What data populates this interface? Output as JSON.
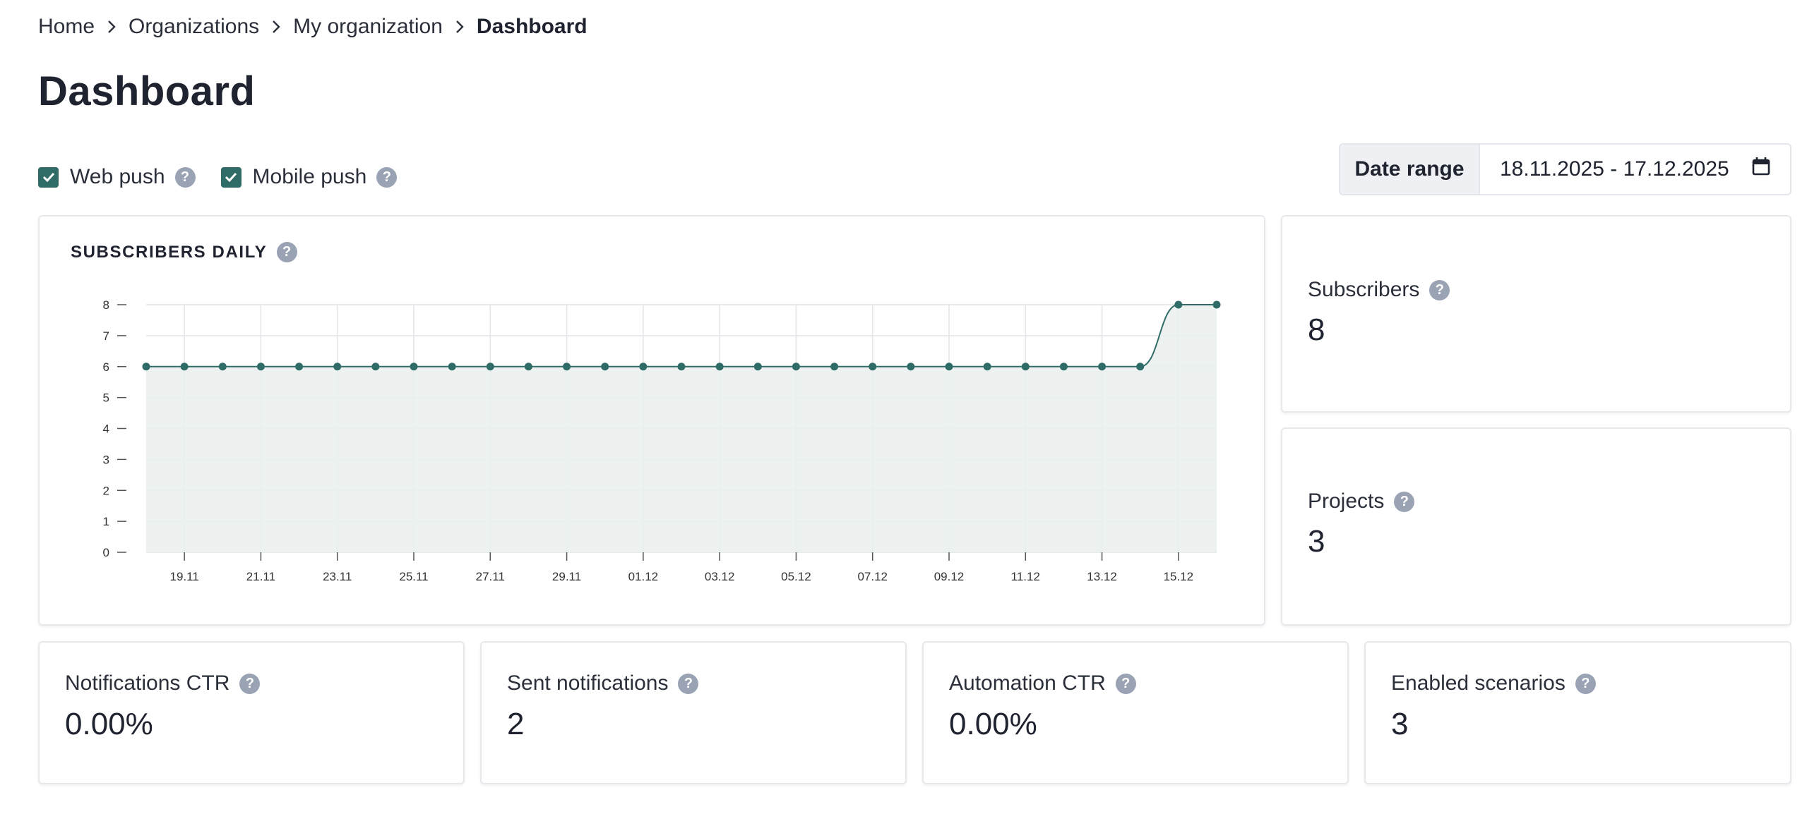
{
  "breadcrumb": {
    "items": [
      "Home",
      "Organizations",
      "My organization"
    ],
    "current": "Dashboard"
  },
  "page": {
    "title": "Dashboard"
  },
  "filters": {
    "web_push": {
      "label": "Web push",
      "checked": true
    },
    "mobile_push": {
      "label": "Mobile push",
      "checked": true
    }
  },
  "date_range": {
    "label": "Date range",
    "value": "18.11.2025 - 17.12.2025"
  },
  "colors": {
    "accent": "#2f6b67",
    "area_fill": "#eaf0ef",
    "help_icon": "#9aa3b4",
    "grid": "#e2e4e8"
  },
  "stats": {
    "subscribers": {
      "label": "Subscribers",
      "value": "8"
    },
    "projects": {
      "label": "Projects",
      "value": "3"
    },
    "notifications_ctr": {
      "label": "Notifications CTR",
      "value": "0.00%"
    },
    "sent_notifications": {
      "label": "Sent notifications",
      "value": "2"
    },
    "automation_ctr": {
      "label": "Automation CTR",
      "value": "0.00%"
    },
    "enabled_scenarios": {
      "label": "Enabled scenarios",
      "value": "3"
    }
  },
  "chart_data": {
    "type": "area",
    "title": "SUBSCRIBERS DAILY",
    "xlabel": "",
    "ylabel": "",
    "ylim": [
      0,
      8
    ],
    "yticks": [
      0,
      1,
      2,
      3,
      4,
      5,
      6,
      7,
      8
    ],
    "x": [
      "18.11",
      "19.11",
      "20.11",
      "21.11",
      "22.11",
      "23.11",
      "24.11",
      "25.11",
      "26.11",
      "27.11",
      "28.11",
      "29.11",
      "30.11",
      "01.12",
      "02.12",
      "03.12",
      "04.12",
      "05.12",
      "06.12",
      "07.12",
      "08.12",
      "09.12",
      "10.12",
      "11.12",
      "12.12",
      "13.12",
      "14.12",
      "15.12",
      "16.12"
    ],
    "x_tick_labels": [
      "19.11",
      "21.11",
      "23.11",
      "25.11",
      "27.11",
      "29.11",
      "01.12",
      "03.12",
      "05.12",
      "07.12",
      "09.12",
      "11.12",
      "13.12",
      "15.12"
    ],
    "values": [
      6,
      6,
      6,
      6,
      6,
      6,
      6,
      6,
      6,
      6,
      6,
      6,
      6,
      6,
      6,
      6,
      6,
      6,
      6,
      6,
      6,
      6,
      6,
      6,
      6,
      6,
      6,
      8,
      8
    ],
    "grid": true,
    "legend": "none"
  }
}
